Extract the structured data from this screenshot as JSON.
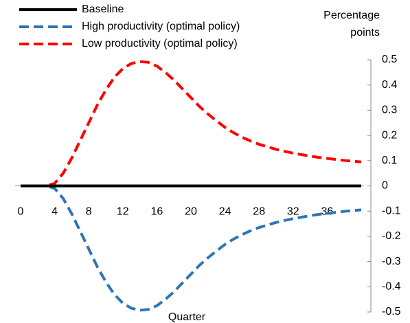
{
  "chart_data": {
    "type": "line",
    "x_label": "Quarter",
    "y_label": "Percentage points",
    "x": [
      0,
      1,
      2,
      3,
      4,
      5,
      6,
      7,
      8,
      9,
      10,
      11,
      12,
      13,
      14,
      15,
      16,
      17,
      18,
      19,
      20,
      21,
      22,
      23,
      24,
      25,
      26,
      27,
      28,
      29,
      30,
      31,
      32,
      33,
      34,
      35,
      36,
      37,
      38,
      39,
      40
    ],
    "series": [
      {
        "name": "Baseline",
        "color": "#000000",
        "dash": false,
        "values": [
          0,
          0,
          0,
          0,
          0,
          0,
          0,
          0,
          0,
          0,
          0,
          0,
          0,
          0,
          0,
          0,
          0,
          0,
          0,
          0,
          0,
          0,
          0,
          0,
          0,
          0,
          0,
          0,
          0,
          0,
          0,
          0,
          0,
          0,
          0,
          0,
          0,
          0,
          0,
          0,
          0
        ]
      },
      {
        "name": "High productivity (optimal policy)",
        "color": "#2e75b6",
        "dash": true,
        "values": [
          0,
          0,
          0,
          0,
          -0.01,
          -0.05,
          -0.11,
          -0.18,
          -0.25,
          -0.32,
          -0.38,
          -0.43,
          -0.465,
          -0.485,
          -0.493,
          -0.49,
          -0.475,
          -0.45,
          -0.42,
          -0.385,
          -0.35,
          -0.315,
          -0.285,
          -0.258,
          -0.232,
          -0.211,
          -0.193,
          -0.178,
          -0.165,
          -0.155,
          -0.145,
          -0.137,
          -0.13,
          -0.124,
          -0.118,
          -0.113,
          -0.109,
          -0.105,
          -0.101,
          -0.098,
          -0.095
        ]
      },
      {
        "name": "Low productivity (optimal policy)",
        "color": "#ff0000",
        "dash": true,
        "values": [
          0,
          0,
          0,
          0,
          0.01,
          0.05,
          0.11,
          0.18,
          0.25,
          0.32,
          0.38,
          0.43,
          0.465,
          0.485,
          0.493,
          0.49,
          0.475,
          0.45,
          0.42,
          0.385,
          0.35,
          0.315,
          0.285,
          0.258,
          0.232,
          0.211,
          0.193,
          0.178,
          0.165,
          0.155,
          0.145,
          0.137,
          0.13,
          0.124,
          0.118,
          0.113,
          0.109,
          0.105,
          0.101,
          0.098,
          0.095
        ]
      }
    ],
    "xlim": [
      0,
      40
    ],
    "xticks": [
      0,
      4,
      8,
      12,
      16,
      20,
      24,
      28,
      32,
      36
    ],
    "ylim": [
      -0.5,
      0.5
    ],
    "yticks": [
      -0.5,
      -0.4,
      -0.3,
      -0.2,
      -0.1,
      0,
      0.1,
      0.2,
      0.3,
      0.4,
      0.5
    ],
    "y_axis_side": "right",
    "legend": "top-left"
  }
}
